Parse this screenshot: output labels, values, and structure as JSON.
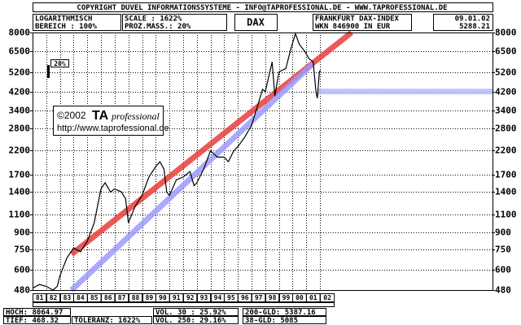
{
  "header": {
    "copyright": "COPYRIGHT DUVEL INFORMATIONSSYSTEME - INFO@TAPROFESSIONAL.DE - WWW.TAPROFESSIONAL.DE",
    "scale_mode": "LOGARITHMISCH",
    "range": "BEREICH : 100%",
    "scale": "SCALE : 1622%",
    "percent_measure": "PROZ.MASS.: 20%",
    "symbol": "DAX",
    "exchange": "FRANKFURT DAX-INDEX",
    "wkn": "WKN 846900  IN EUR",
    "date": "09.01.02",
    "last": "5288.21"
  },
  "watermark": {
    "copy": "©2002",
    "brand": "TA",
    "brand_sub": "professional",
    "url": "http://www.taprofessional.de"
  },
  "scale_marker": "20%",
  "stats": {
    "high": "HOCH: 8064.97",
    "low": "TIEF:  468.32",
    "tolerance": "TOLERANZ:  1622%",
    "vol30": "VOL.  30 : 25.92%",
    "vol250": "VOL. 250: 29.16%",
    "gld200": "200-GLD: 5387.16",
    "gld38": "38-GLD: 5085"
  },
  "chart_data": {
    "type": "line",
    "log_y": true,
    "grid": true,
    "xlim": [
      1981,
      2014.6
    ],
    "ylim": [
      480,
      8000
    ],
    "yticks": [
      8000,
      6500,
      5200,
      4200,
      3400,
      2800,
      2200,
      1700,
      1400,
      1100,
      900,
      750,
      600,
      480
    ],
    "xticks": [
      {
        "value": 1981,
        "label": "81"
      },
      {
        "value": 1982,
        "label": "82"
      },
      {
        "value": 1983,
        "label": "83"
      },
      {
        "value": 1984,
        "label": "84"
      },
      {
        "value": 1985,
        "label": "85"
      },
      {
        "value": 1986,
        "label": "86"
      },
      {
        "value": 1987,
        "label": "87"
      },
      {
        "value": 1988,
        "label": "88"
      },
      {
        "value": 1989,
        "label": "89"
      },
      {
        "value": 1990,
        "label": "90"
      },
      {
        "value": 1991,
        "label": "91"
      },
      {
        "value": 1992,
        "label": "92"
      },
      {
        "value": 1993,
        "label": "93"
      },
      {
        "value": 1994,
        "label": "94"
      },
      {
        "value": 1995,
        "label": "95"
      },
      {
        "value": 1996,
        "label": "96"
      },
      {
        "value": 1997,
        "label": "97"
      },
      {
        "value": 1998,
        "label": "98"
      },
      {
        "value": 1999,
        "label": "99"
      },
      {
        "value": 2000,
        "label": "00"
      },
      {
        "value": 2001,
        "label": "01"
      },
      {
        "value": 2002,
        "label": "02"
      }
    ],
    "trendlines": [
      {
        "color": "#e83c3c",
        "x": [
          1983.85,
          2004.3
        ],
        "values": [
          710,
          8000
        ]
      },
      {
        "color": "#9a9aff",
        "x": [
          1983.85,
          2001.5
        ],
        "values": [
          480,
          5700
        ]
      },
      {
        "color": "#b8b8ff",
        "x": [
          2001.8,
          2014.6
        ],
        "values": [
          4200,
          4200
        ]
      }
    ],
    "series": [
      {
        "color": "#000000",
        "x": [
          1981.0,
          1981.5,
          1982.0,
          1982.5,
          1982.8,
          1983.0,
          1983.5,
          1984.0,
          1984.5,
          1985.0,
          1985.5,
          1986.0,
          1986.3,
          1986.7,
          1987.0,
          1987.5,
          1987.8,
          1988.0,
          1988.5,
          1989.0,
          1989.5,
          1990.0,
          1990.3,
          1990.6,
          1990.8,
          1991.0,
          1991.5,
          1992.0,
          1992.5,
          1992.8,
          1993.0,
          1993.5,
          1994.0,
          1994.5,
          1995.0,
          1995.3,
          1995.7,
          1996.0,
          1996.5,
          1997.0,
          1997.5,
          1997.8,
          1998.0,
          1998.5,
          1998.7,
          1999.0,
          1999.5,
          1999.9,
          2000.2,
          2000.5,
          2000.9,
          2001.2,
          2001.5,
          2001.7,
          2001.8,
          2001.95,
          2002.03
        ],
        "values": [
          490,
          510,
          500,
          480,
          500,
          560,
          680,
          760,
          730,
          820,
          1000,
          1450,
          1550,
          1400,
          1450,
          1400,
          1300,
          1000,
          1200,
          1350,
          1650,
          1850,
          1950,
          1800,
          1400,
          1350,
          1600,
          1650,
          1750,
          1500,
          1550,
          1800,
          2200,
          2050,
          2050,
          1950,
          2200,
          2300,
          2550,
          2900,
          3700,
          4300,
          4200,
          5800,
          4000,
          5200,
          5400,
          6800,
          7900,
          7000,
          6500,
          6000,
          5800,
          4200,
          3900,
          5200,
          5290
        ]
      }
    ]
  }
}
